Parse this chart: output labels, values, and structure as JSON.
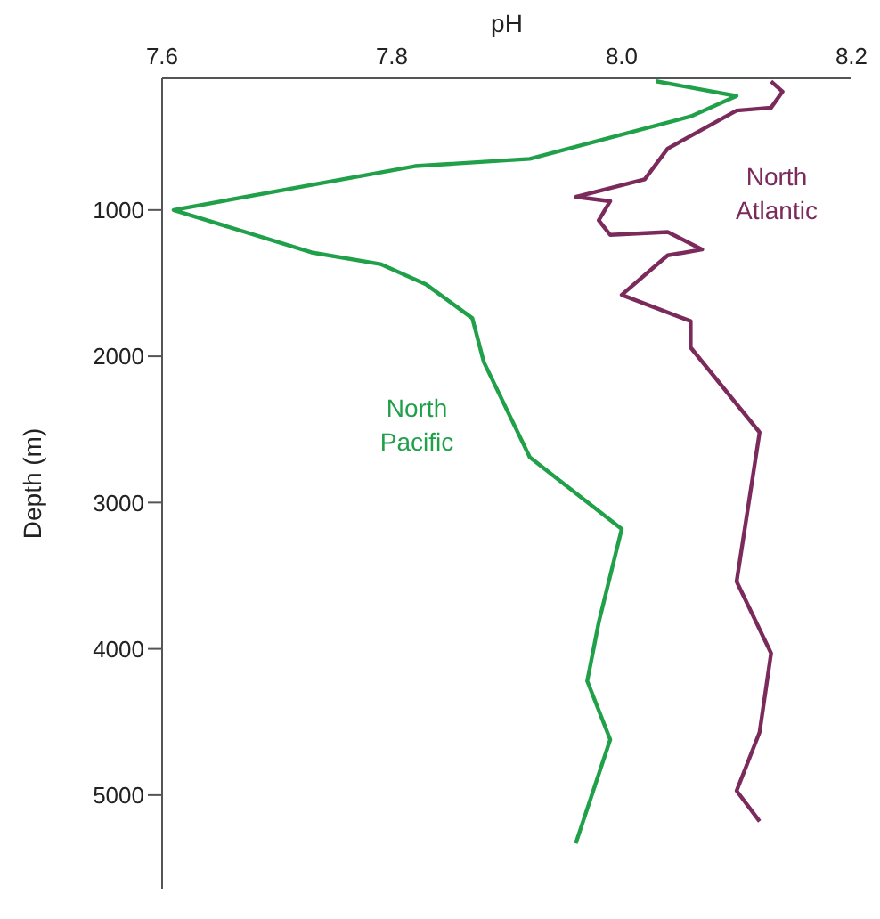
{
  "chart_data": {
    "type": "line",
    "xlabel": "pH",
    "ylabel": "Depth (m)",
    "xlim": [
      7.6,
      8.2
    ],
    "xticks": [
      7.6,
      7.8,
      {
        "value": 8,
        "label": "8.0"
      },
      8.2
    ],
    "ylim": [
      5640,
      100
    ],
    "yticks": [
      1000,
      2000,
      3000,
      4000,
      5000
    ],
    "marker": "none",
    "line_style": "solid",
    "series": [
      {
        "name": "North Pacific",
        "color": "#21a04a",
        "x": [
          8.03,
          8.1,
          8.06,
          7.92,
          7.82,
          7.61,
          7.73,
          7.79,
          7.83,
          7.87,
          7.88,
          7.92,
          8.0,
          7.98,
          7.97,
          7.99,
          7.96
        ],
        "values": [
          120,
          220,
          360,
          650,
          700,
          1000,
          1290,
          1370,
          1510,
          1740,
          2040,
          2690,
          3180,
          3820,
          4220,
          4620,
          5330
        ]
      },
      {
        "name": "North Atlantic",
        "color": "#7b2a5c",
        "x": [
          8.13,
          8.14,
          8.13,
          8.1,
          8.04,
          8.02,
          7.96,
          7.99,
          7.98,
          7.99,
          8.04,
          8.07,
          8.04,
          8.0,
          8.06,
          8.06,
          8.12,
          8.1,
          8.13,
          8.12,
          8.1,
          8.12
        ],
        "values": [
          120,
          190,
          300,
          320,
          580,
          790,
          910,
          940,
          1070,
          1170,
          1150,
          1270,
          1310,
          1580,
          1760,
          1940,
          2520,
          3540,
          4030,
          4570,
          4970,
          5180
        ]
      }
    ]
  }
}
